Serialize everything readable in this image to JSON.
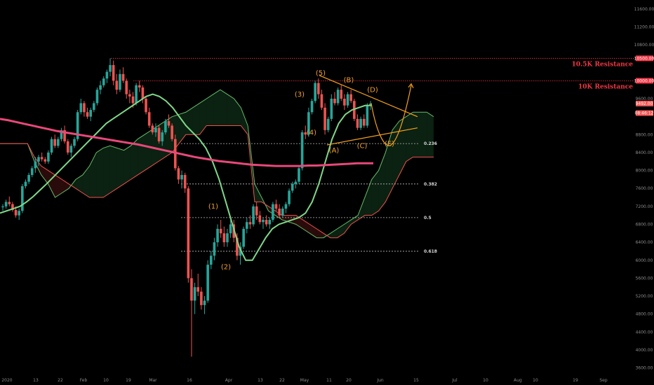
{
  "colors": {
    "background": "#000000",
    "up": "#26a69a",
    "down": "#ef5350",
    "resistance": "#f23645",
    "pattern": "#f7a21b",
    "ma_short": "#7fd88a",
    "ma_long": "#e8487a",
    "cloud_lead_a": "#66bb6a",
    "cloud_lead_b": "#ef5350",
    "fib": "#9e9e9e"
  },
  "chart_data": {
    "type": "candlestick",
    "ylim": [
      3500,
      11800
    ],
    "y_ticks": [
      "11600.00",
      "11200.00",
      "10800.00",
      "10500.00",
      "10000.00",
      "9600.00",
      "9492.00",
      "08:46:12",
      "8800.00",
      "8400.00",
      "8000.00",
      "7600.00",
      "7200.00",
      "6800.00",
      "6400.00",
      "6000.00",
      "5600.00",
      "5200.00",
      "4800.00",
      "4400.00",
      "4000.00",
      "3600.00"
    ],
    "x_ticks": [
      "2020",
      "13",
      "22",
      "Feb",
      "10",
      "19",
      "Mar",
      "16",
      "Apr",
      "13",
      "22",
      "May",
      "11",
      "20",
      "Jun",
      "15",
      "Jul",
      "10",
      "Aug",
      "10",
      "19",
      "Sep"
    ],
    "candles": [
      [
        7180,
        7250,
        7100,
        7200
      ],
      [
        7200,
        7350,
        7150,
        7300
      ],
      [
        7300,
        7420,
        7200,
        7250
      ],
      [
        7250,
        7300,
        7080,
        7120
      ],
      [
        7120,
        7200,
        6950,
        7000
      ],
      [
        7000,
        7150,
        6900,
        7100
      ],
      [
        7100,
        7700,
        7050,
        7650
      ],
      [
        7650,
        7800,
        7600,
        7750
      ],
      [
        7750,
        7950,
        7700,
        7900
      ],
      [
        7900,
        8100,
        7850,
        8050
      ],
      [
        8050,
        8300,
        7950,
        8200
      ],
      [
        8200,
        8350,
        8100,
        8300
      ],
      [
        8300,
        8400,
        8200,
        8250
      ],
      [
        8250,
        8300,
        8150,
        8200
      ],
      [
        8200,
        8450,
        8150,
        8400
      ],
      [
        8400,
        8750,
        8350,
        8700
      ],
      [
        8700,
        8800,
        8500,
        8550
      ],
      [
        8550,
        8750,
        8500,
        8700
      ],
      [
        8700,
        8950,
        8650,
        8900
      ],
      [
        8900,
        9000,
        8600,
        8650
      ],
      [
        8650,
        8700,
        8350,
        8400
      ],
      [
        8400,
        8600,
        8300,
        8550
      ],
      [
        8550,
        8750,
        8500,
        8700
      ],
      [
        8700,
        9350,
        8650,
        9300
      ],
      [
        9300,
        9600,
        9250,
        9500
      ],
      [
        9500,
        9550,
        9200,
        9300
      ],
      [
        9300,
        9400,
        9150,
        9200
      ],
      [
        9200,
        9400,
        9100,
        9350
      ],
      [
        9350,
        9550,
        9300,
        9500
      ],
      [
        9500,
        9850,
        9450,
        9800
      ],
      [
        9800,
        10000,
        9700,
        9900
      ],
      [
        9900,
        10100,
        9850,
        10050
      ],
      [
        10050,
        10250,
        9950,
        10200
      ],
      [
        10200,
        10500,
        10100,
        10350
      ],
      [
        10350,
        10450,
        9900,
        10000
      ],
      [
        10000,
        10150,
        9700,
        9800
      ],
      [
        9800,
        10250,
        9750,
        10150
      ],
      [
        10150,
        10300,
        9950,
        10000
      ],
      [
        10000,
        10050,
        9600,
        9700
      ],
      [
        9700,
        9800,
        9500,
        9650
      ],
      [
        9650,
        9750,
        9400,
        9500
      ],
      [
        9500,
        9950,
        9450,
        9900
      ],
      [
        9900,
        10000,
        9750,
        9850
      ],
      [
        9850,
        9900,
        9500,
        9600
      ],
      [
        9600,
        9650,
        9250,
        9300
      ],
      [
        9300,
        9400,
        8950,
        9000
      ],
      [
        9000,
        9050,
        8800,
        8850
      ],
      [
        8850,
        9050,
        8750,
        8950
      ],
      [
        8950,
        9000,
        8600,
        8650
      ],
      [
        8650,
        8900,
        8550,
        8850
      ],
      [
        8850,
        9150,
        8800,
        9100
      ],
      [
        9100,
        9250,
        8950,
        9000
      ],
      [
        9000,
        9050,
        8650,
        8700
      ],
      [
        8700,
        8800,
        8000,
        8050
      ],
      [
        8050,
        8100,
        7700,
        7800
      ],
      [
        7800,
        8000,
        7600,
        7900
      ],
      [
        7900,
        7950,
        7500,
        7600
      ],
      [
        7600,
        7650,
        5500,
        5600
      ],
      [
        5600,
        5800,
        3850,
        5100
      ],
      [
        5100,
        5500,
        4800,
        5400
      ],
      [
        5400,
        5700,
        5200,
        5300
      ],
      [
        5300,
        5400,
        4900,
        5000
      ],
      [
        5000,
        5200,
        4800,
        5100
      ],
      [
        5100,
        6000,
        5050,
        5900
      ],
      [
        5900,
        6200,
        5800,
        6100
      ],
      [
        6100,
        6500,
        6000,
        6400
      ],
      [
        6400,
        6800,
        6300,
        6700
      ],
      [
        6700,
        6900,
        6500,
        6600
      ],
      [
        6600,
        6750,
        6300,
        6400
      ],
      [
        6400,
        6700,
        6300,
        6600
      ],
      [
        6600,
        6900,
        6500,
        6800
      ],
      [
        6800,
        6900,
        6400,
        6500
      ],
      [
        6500,
        6600,
        6000,
        6100
      ],
      [
        6100,
        6400,
        5900,
        6300
      ],
      [
        6300,
        6750,
        6250,
        6700
      ],
      [
        6700,
        6950,
        6600,
        6850
      ],
      [
        6850,
        7000,
        6700,
        6800
      ],
      [
        6800,
        7250,
        6750,
        7200
      ],
      [
        7200,
        7300,
        6900,
        7000
      ],
      [
        7000,
        7100,
        6800,
        6850
      ],
      [
        6850,
        6950,
        6700,
        6900
      ],
      [
        6900,
        7000,
        6750,
        6800
      ],
      [
        6800,
        6950,
        6700,
        6900
      ],
      [
        6900,
        7300,
        6850,
        7250
      ],
      [
        7250,
        7350,
        7100,
        7150
      ],
      [
        7150,
        7250,
        6950,
        7000
      ],
      [
        7000,
        7200,
        6950,
        7150
      ],
      [
        7150,
        7300,
        7050,
        7250
      ],
      [
        7250,
        7600,
        7200,
        7550
      ],
      [
        7550,
        7750,
        7500,
        7700
      ],
      [
        7700,
        7800,
        7600,
        7750
      ],
      [
        7750,
        8100,
        7700,
        8050
      ],
      [
        8050,
        8900,
        8000,
        8850
      ],
      [
        8850,
        9000,
        8700,
        8800
      ],
      [
        8800,
        9400,
        8750,
        9300
      ],
      [
        9300,
        9600,
        9250,
        9550
      ],
      [
        9550,
        10000,
        9500,
        9950
      ],
      [
        9950,
        10050,
        9600,
        9700
      ],
      [
        9700,
        9800,
        9350,
        9400
      ],
      [
        9400,
        9500,
        8800,
        8900
      ],
      [
        8900,
        9200,
        8850,
        9150
      ],
      [
        9150,
        9700,
        9100,
        9600
      ],
      [
        9600,
        9750,
        9450,
        9500
      ],
      [
        9500,
        9850,
        9450,
        9800
      ],
      [
        9800,
        9900,
        9550,
        9600
      ],
      [
        9600,
        9700,
        9350,
        9450
      ],
      [
        9450,
        9750,
        9400,
        9700
      ],
      [
        9700,
        9800,
        9500,
        9550
      ],
      [
        9550,
        9600,
        9100,
        9150
      ],
      [
        9150,
        9250,
        8900,
        8950
      ],
      [
        8950,
        9200,
        8900,
        9150
      ],
      [
        9150,
        9250,
        8950,
        9000
      ],
      [
        9000,
        9500,
        8950,
        9450
      ],
      [
        9450,
        9550,
        9350,
        9492
      ]
    ],
    "ma_short": [
      7050,
      7100,
      7150,
      7200,
      7300,
      7420,
      7560,
      7700,
      7850,
      8000,
      8150,
      8300,
      8450,
      8600,
      8750,
      8900,
      9050,
      9150,
      9250,
      9350,
      9450,
      9550,
      9650,
      9700,
      9650,
      9550,
      9400,
      9200,
      9000,
      8850,
      8700,
      8500,
      8200,
      7800,
      7300,
      6800,
      6300,
      6000,
      6000,
      6250,
      6500,
      6700,
      6800,
      6850,
      6900,
      6950,
      7050,
      7300,
      7700,
      8200,
      8700,
      9050,
      9250,
      9350,
      9400,
      9450,
      9450
    ],
    "ma_long": [
      9150,
      9120,
      9080,
      9040,
      9000,
      8960,
      8920,
      8880,
      8850,
      8820,
      8790,
      8760,
      8730,
      8700,
      8670,
      8640,
      8610,
      8580,
      8540,
      8500,
      8460,
      8420,
      8380,
      8340,
      8300,
      8270,
      8240,
      8210,
      8190,
      8170,
      8150,
      8130,
      8120,
      8110,
      8100,
      8100,
      8100,
      8100,
      8110,
      8110,
      8120,
      8130,
      8140,
      8150,
      8160,
      8160,
      8160
    ],
    "cloud_a": [
      8600,
      8600,
      8600,
      8600,
      8600,
      8200,
      7900,
      7700,
      7400,
      7500,
      7600,
      7800,
      7900,
      8100,
      8400,
      8500,
      8550,
      8500,
      8450,
      8550,
      8700,
      8800,
      8900,
      9000,
      9100,
      9200,
      9250,
      9300,
      9400,
      9500,
      9600,
      9700,
      9800,
      9700,
      9600,
      9400,
      9000,
      7700,
      7400,
      7100,
      7000,
      6900,
      6850,
      6800,
      6700,
      6600,
      6500,
      6500,
      6600,
      6700,
      6800,
      6900,
      7000,
      7400,
      7800,
      8000,
      8400,
      8900,
      9100,
      9200,
      9300,
      9300,
      9300,
      9200
    ],
    "cloud_b": [
      8600,
      8600,
      8600,
      8600,
      8600,
      8300,
      8100,
      8000,
      7900,
      7800,
      7700,
      7600,
      7500,
      7400,
      7400,
      7400,
      7500,
      7600,
      7700,
      7800,
      7900,
      8000,
      8100,
      8200,
      8300,
      8400,
      8600,
      8800,
      8800,
      8800,
      9000,
      9000,
      9000,
      9000,
      9000,
      9000,
      8800,
      7300,
      7300,
      7200,
      7100,
      7000,
      7000,
      7000,
      6900,
      6800,
      6700,
      6600,
      6500,
      6500,
      6600,
      6800,
      6900,
      7000,
      7000,
      7100,
      7300,
      7600,
      7900,
      8200,
      8300,
      8300,
      8300,
      8300
    ],
    "fib_levels": [
      {
        "ratio": "0.236",
        "value": 8600
      },
      {
        "ratio": "0.382",
        "value": 7700
      },
      {
        "ratio": "0.5",
        "value": 6950
      },
      {
        "ratio": "0.618",
        "value": 6200
      }
    ],
    "resistances": [
      {
        "label": "10.5K Resistance",
        "value": 10500
      },
      {
        "label": "10K Resistance",
        "value": 10000
      }
    ],
    "waves": [
      {
        "label": "(1)",
        "value": 7150
      },
      {
        "label": "(2)",
        "value": 5800
      },
      {
        "label": "(3)",
        "value": 9650
      },
      {
        "label": "(4)",
        "value": 8800
      },
      {
        "label": "(5)",
        "value": 10120
      },
      {
        "label": "(A)",
        "value": 8400
      },
      {
        "label": "(B)",
        "value": 9970
      },
      {
        "label": "(C)",
        "value": 8500
      },
      {
        "label": "(D)",
        "value": 9750
      },
      {
        "label": "(E)",
        "value": 8550
      }
    ],
    "last_price": "9492.00",
    "countdown": "08:46:12"
  }
}
